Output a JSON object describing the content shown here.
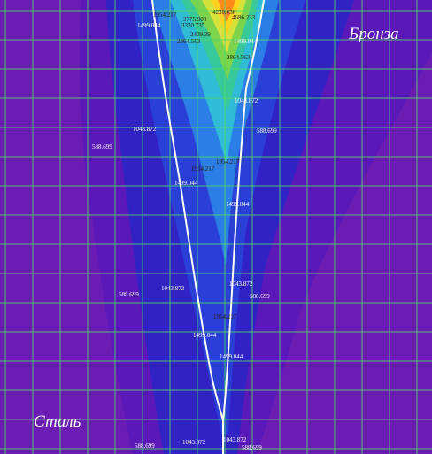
{
  "regions": {
    "top_right": "Бронза",
    "bottom_left": "Сталь"
  },
  "colors": {
    "background": "#6b1db3",
    "grid": "#4fd86a",
    "boundary": "#ffffff",
    "level_588": "#5a18b8",
    "level_1043": "#3122c4",
    "level_1499": "#2a3fd6",
    "level_1954": "#2b7ee6",
    "level_2409": "#30bcd6",
    "level_2864": "#38c99a",
    "level_3320": "#7cd34c",
    "level_3775": "#d6e23a",
    "level_4230": "#ffd21e",
    "level_4686": "#ff8a1a",
    "label_text": "#ffffff",
    "label_text_dark": "#2b1a00"
  },
  "contour_labels": [
    "1499.044",
    "1954.217",
    "3775.908",
    "4230.038",
    "4686.233",
    "3320.735",
    "2409.39",
    "2864.563",
    "1499.044",
    "2864.563",
    "1043.872",
    "1043.872",
    "588.699",
    "588.699",
    "1954.217",
    "1954.217",
    "1499.044",
    "1499.044",
    "1043.872",
    "1043.872",
    "588.699",
    "588.699",
    "1954.217",
    "1499.044",
    "1499.044",
    "588.699",
    "1043.872",
    "1043.872",
    "588.699"
  ]
}
